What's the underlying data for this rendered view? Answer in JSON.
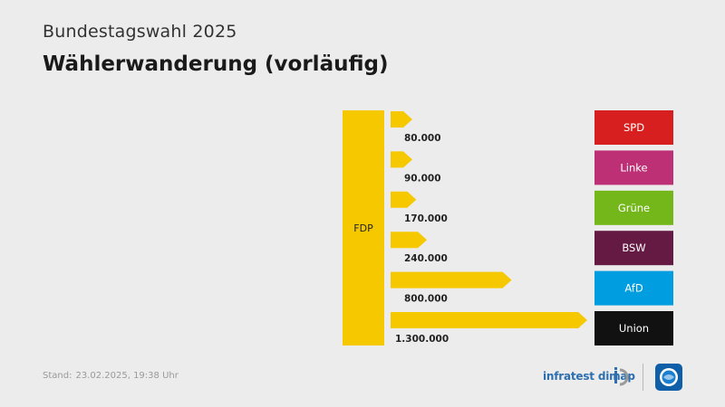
{
  "header": {
    "supertitle": "Bundestagswahl 2025",
    "title": "Wählerwanderung (vorläufig)"
  },
  "footer": {
    "stand_label": "Stand:",
    "stand_value": "23.02.2025, 19:38 Uhr",
    "brand": "infratest dimap"
  },
  "colors": {
    "flow": "#f5c800",
    "source": "#f5c800"
  },
  "chart_data": {
    "type": "bar",
    "source": {
      "label": "FDP",
      "color": "#f5c800"
    },
    "categories": [
      "SPD",
      "Linke",
      "Grüne",
      "BSW",
      "AfD",
      "Union"
    ],
    "values": [
      80000,
      90000,
      170000,
      240000,
      800000,
      1300000
    ],
    "value_labels": [
      "80.000",
      "90.000",
      "170.000",
      "240.000",
      "800.000",
      "1.300.000"
    ],
    "target_colors": [
      "#d71f1f",
      "#be3075",
      "#74b71b",
      "#641a42",
      "#009ee0",
      "#111111"
    ]
  }
}
